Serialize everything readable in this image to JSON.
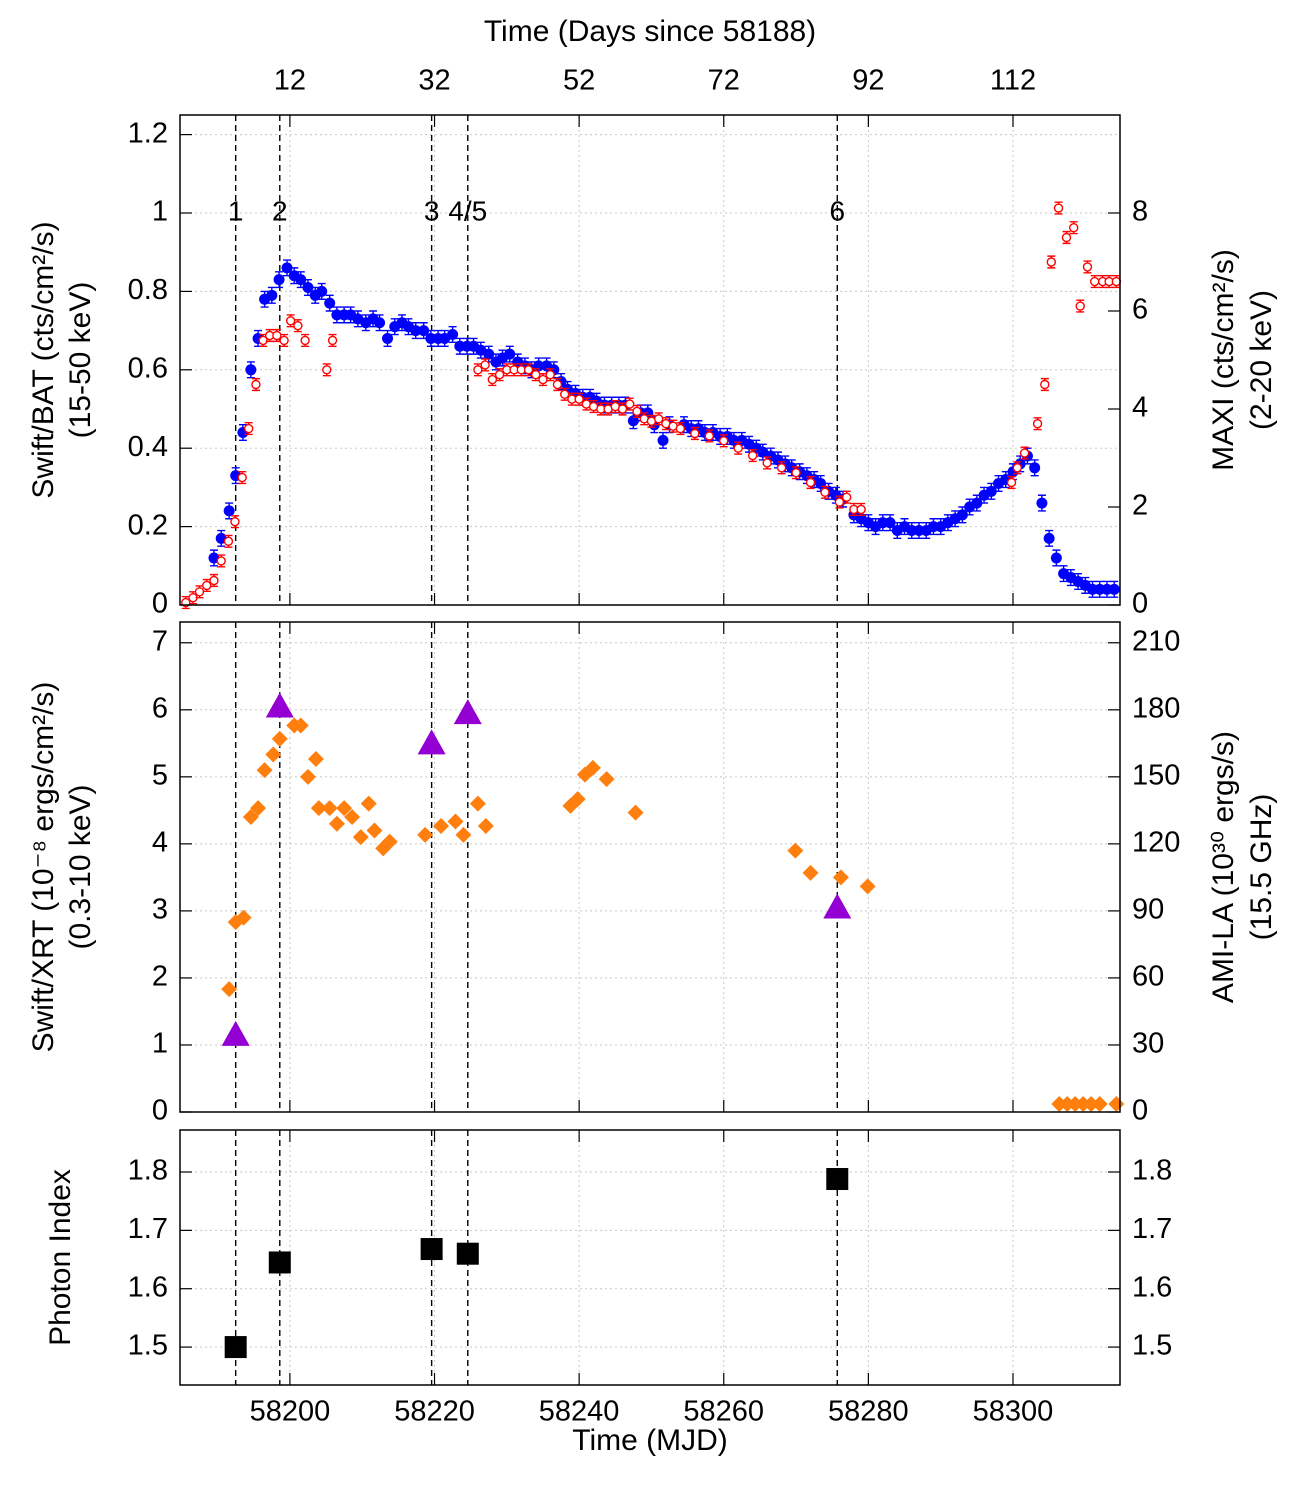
{
  "chart_data": [
    {
      "type": "scatter",
      "x2label": "Time (Days since 58188)",
      "x2lim": [
        -3.2,
        126.8
      ],
      "x2ticks": [
        12,
        32,
        52,
        72,
        92,
        112
      ],
      "xlim": [
        58184.8,
        58314.8
      ],
      "xticks": [
        58200,
        58220,
        58240,
        58260,
        58280,
        58300
      ],
      "ylim": [
        0,
        1.25
      ],
      "yticks": [
        0,
        0.2,
        0.4,
        0.6,
        0.8,
        1,
        1.2
      ],
      "y2lim": [
        0,
        10
      ],
      "y2ticks": [
        0,
        2,
        4,
        6,
        8
      ],
      "ylabel": [
        "Swift/BAT (cts/cm²/s)",
        "(15-50 keV)"
      ],
      "y2label": [
        "MAXI (cts/cm²/s)",
        "(2-20 keV)"
      ],
      "grid": true,
      "epochs": {
        "x": [
          58192.5,
          58198.6,
          58219.6,
          58224.6,
          58275.7
        ],
        "labels": [
          "1",
          "2",
          "3",
          "4/5",
          "6"
        ]
      },
      "series": [
        {
          "color": "#0000ff",
          "marker": "circle",
          "error": 0.02,
          "x": [
            58189.5,
            58190.5,
            58191.6,
            58192.5,
            58193.5,
            58194.6,
            58195.6,
            58196.5,
            58197.5,
            58198.5,
            58199.6,
            58200.6,
            58201.5,
            58202.5,
            58203.5,
            58204.4,
            58205.5,
            58206.5,
            58207.5,
            58208.4,
            58209.4,
            58210.5,
            58211.5,
            58212.4,
            58213.5,
            58214.5,
            58215.5,
            58216.4,
            58217.4,
            58218.5,
            58219.5,
            58220.5,
            58221.4,
            58222.5,
            58223.5,
            58224.5,
            58225.4,
            58226.4,
            58227.5,
            58228.5,
            58229.4,
            58230.4,
            58231.5,
            58232.5,
            58233.4,
            58234.4,
            58235.5,
            58236.5,
            58237.5,
            58238.4,
            58239.5,
            58240.5,
            58241.5,
            58242.4,
            58243.5,
            58244.5,
            58245.5,
            58246.4,
            58247.5,
            58248.5,
            58249.5,
            58250.4,
            58251.6,
            58252.5,
            58254.5,
            58255.5,
            58256.5,
            58257.4,
            58258.5,
            58259.5,
            58260.5,
            58261.4,
            58262.5,
            58263.5,
            58264.5,
            58265.4,
            58266.5,
            58267.5,
            58268.5,
            58269.4,
            58270.5,
            58271.5,
            58272.5,
            58273.4,
            58274.5,
            58275.5,
            58276.5,
            58278,
            58279,
            58280,
            58281,
            58282,
            58283,
            58284,
            58285,
            58286,
            58287,
            58288,
            58289,
            58290,
            58291,
            58292,
            58293,
            58294,
            58295,
            58296,
            58297,
            58298,
            58299,
            58300,
            58301,
            58302,
            58303,
            58304,
            58305,
            58306,
            58307,
            58308,
            58309,
            58310,
            58311,
            58312,
            58313,
            58314
          ],
          "values": [
            0.12,
            0.17,
            0.24,
            0.33,
            0.44,
            0.6,
            0.68,
            0.78,
            0.79,
            0.83,
            0.86,
            0.84,
            0.83,
            0.81,
            0.79,
            0.8,
            0.77,
            0.74,
            0.74,
            0.74,
            0.73,
            0.72,
            0.73,
            0.72,
            0.68,
            0.71,
            0.72,
            0.71,
            0.7,
            0.7,
            0.68,
            0.68,
            0.68,
            0.69,
            0.66,
            0.66,
            0.66,
            0.65,
            0.64,
            0.62,
            0.63,
            0.64,
            0.62,
            0.61,
            0.6,
            0.61,
            0.61,
            0.6,
            0.57,
            0.55,
            0.54,
            0.53,
            0.53,
            0.52,
            0.51,
            0.51,
            0.51,
            0.51,
            0.47,
            0.49,
            0.49,
            0.46,
            0.42,
            0.46,
            0.46,
            0.45,
            0.45,
            0.44,
            0.44,
            0.43,
            0.43,
            0.42,
            0.42,
            0.41,
            0.4,
            0.39,
            0.38,
            0.37,
            0.36,
            0.35,
            0.34,
            0.33,
            0.32,
            0.31,
            0.29,
            0.28,
            0.27,
            0.23,
            0.22,
            0.21,
            0.2,
            0.21,
            0.21,
            0.19,
            0.2,
            0.19,
            0.19,
            0.19,
            0.2,
            0.2,
            0.21,
            0.22,
            0.23,
            0.25,
            0.26,
            0.28,
            0.29,
            0.31,
            0.32,
            0.34,
            0.36,
            0.38,
            0.35,
            0.26,
            0.17,
            0.12,
            0.08,
            0.07,
            0.06,
            0.05,
            0.04,
            0.04,
            0.04,
            0.04
          ]
        },
        {
          "color": "#ff0000",
          "marker": "open-circle",
          "axis": "y2",
          "error": 0.12,
          "x": [
            58185.6,
            58186.6,
            58187.5,
            58188.5,
            58189.5,
            58190.5,
            58191.5,
            58192.4,
            58193.4,
            58194.3,
            58195.3,
            58196.3,
            58197.2,
            58198.2,
            58199.2,
            58200.1,
            58201.1,
            58202.1,
            58205.1,
            58205.9,
            58226,
            58227,
            58228,
            58229,
            58230,
            58231,
            58232,
            58233,
            58234,
            58235,
            58236,
            58237,
            58238,
            58239,
            58240,
            58241,
            58242,
            58243,
            58244,
            58245,
            58246,
            58247,
            58248,
            58249,
            58250,
            58251,
            58252,
            58253,
            58254,
            58256,
            58258,
            58260,
            58262,
            58264,
            58266,
            58268,
            58270,
            58272,
            58274,
            58276,
            58277,
            58278,
            58279,
            58299.8,
            58300.6,
            58301.6,
            58303.4,
            58304.4,
            58305.3,
            58306.3,
            58307.4,
            58308.4,
            58309.3,
            58310.3,
            58311.3,
            58312.4,
            58313.3,
            58314.3
          ],
          "values": [
            0.05,
            0.15,
            0.27,
            0.4,
            0.5,
            0.9,
            1.3,
            1.7,
            2.6,
            3.6,
            4.5,
            5.4,
            5.5,
            5.5,
            5.4,
            5.8,
            5.7,
            5.4,
            4.8,
            5.4,
            4.8,
            4.9,
            4.6,
            4.7,
            4.8,
            4.8,
            4.8,
            4.8,
            4.7,
            4.6,
            4.7,
            4.5,
            4.3,
            4.2,
            4.2,
            4.1,
            4.05,
            4.0,
            4.0,
            4.05,
            4.0,
            4.1,
            3.95,
            3.8,
            3.75,
            3.8,
            3.7,
            3.65,
            3.6,
            3.5,
            3.45,
            3.35,
            3.2,
            3.05,
            2.9,
            2.8,
            2.7,
            2.5,
            2.3,
            2.1,
            2.2,
            1.95,
            1.95,
            2.5,
            2.8,
            3.1,
            3.7,
            4.5,
            7.0,
            8.1,
            7.5,
            7.7,
            6.1,
            6.9,
            6.6,
            6.6,
            6.6,
            6.6
          ]
        }
      ]
    },
    {
      "type": "scatter",
      "xlim": [
        58184.8,
        58314.8
      ],
      "xticks": [
        58200,
        58220,
        58240,
        58260,
        58280,
        58300
      ],
      "ylim": [
        0,
        7.31
      ],
      "yticks": [
        0,
        1,
        2,
        3,
        4,
        5,
        6,
        7
      ],
      "y2lim": [
        0,
        219.3
      ],
      "y2ticks": [
        0,
        30,
        60,
        90,
        120,
        150,
        180,
        210
      ],
      "ylabel": [
        "Swift/XRT (10⁻⁸ ergs/cm²/s)",
        "(0.3-10 keV)"
      ],
      "y2label": [
        "AMI-LA (10³⁰ ergs/s)",
        "(15.5 GHz)"
      ],
      "grid": true,
      "series": [
        {
          "color": "#ff7f0e",
          "marker": "diamond",
          "axis": "y2",
          "x": [
            58191.6,
            58192.5,
            58193.6,
            58194.6,
            58195.6,
            58196.5,
            58197.7,
            58198.6,
            58200.6,
            58201.5,
            58202.5,
            58203.6,
            58204.0,
            58205.5,
            58206.5,
            58207.5,
            58208.6,
            58209.8,
            58210.9,
            58211.7,
            58212.9,
            58213.8,
            58218.7,
            58220.9,
            58222.9,
            58224.0,
            58226.0,
            58227.1,
            58238.8,
            58239.8,
            58240.8,
            58241.9,
            58243.8,
            58247.8,
            58269.9,
            58272.0,
            58276.2,
            58279.9,
            58306.4,
            58307.5,
            58308.6,
            58309.7,
            58310.8,
            58312.0,
            58314.3
          ],
          "values": [
            55,
            85,
            87,
            132,
            136,
            153,
            160,
            167,
            173,
            173,
            150,
            158,
            136,
            136,
            129,
            136,
            132,
            123,
            138,
            126,
            118,
            121,
            124,
            128,
            130,
            124,
            138,
            128,
            137,
            140,
            151,
            154,
            149,
            134,
            117,
            107,
            105,
            101,
            3.6,
            3.6,
            3.6,
            3.6,
            3.6,
            3.6,
            3.6
          ]
        },
        {
          "color": "#9400d3",
          "marker": "triangle",
          "x": [
            58192.5,
            58198.6,
            58219.6,
            58224.6,
            58275.7
          ],
          "values": [
            1.15,
            6.05,
            5.5,
            5.95,
            3.05
          ]
        }
      ]
    },
    {
      "type": "scatter",
      "xlabel": "Time (MJD)",
      "xlim": [
        58184.8,
        58314.8
      ],
      "xticks": [
        58200,
        58220,
        58240,
        58260,
        58280,
        58300
      ],
      "ylim": [
        1.435,
        1.872
      ],
      "yticks": [
        1.5,
        1.6,
        1.7,
        1.8
      ],
      "ylabel": [
        "Photon Index"
      ],
      "grid": true,
      "series": [
        {
          "color": "#000000",
          "marker": "square",
          "x": [
            58192.5,
            58198.6,
            58219.6,
            58224.6,
            58275.7
          ],
          "values": [
            1.5,
            1.645,
            1.668,
            1.66,
            1.788
          ]
        }
      ]
    }
  ]
}
